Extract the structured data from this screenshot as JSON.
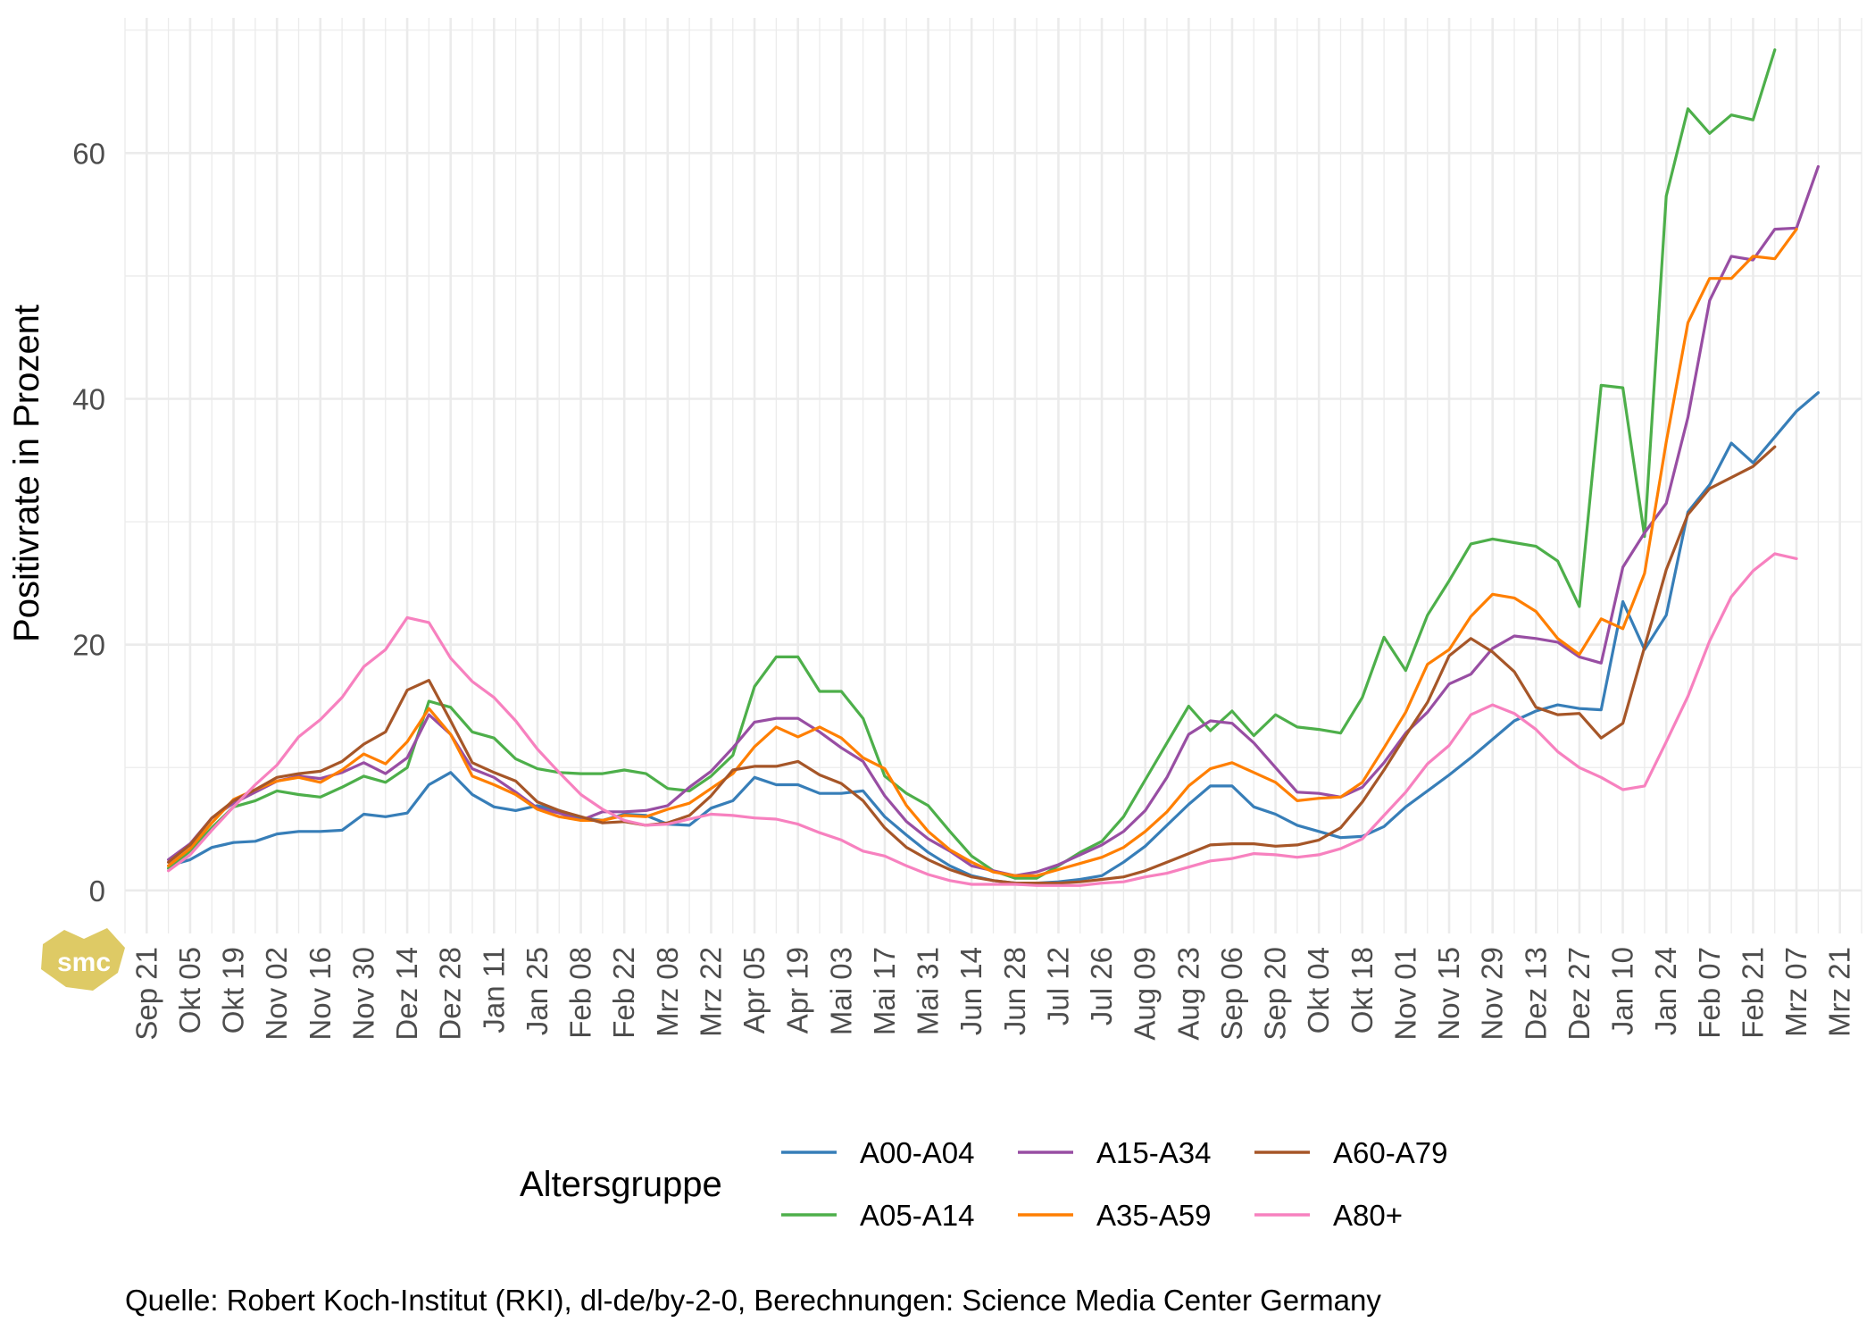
{
  "chart_data": {
    "type": "line",
    "ylabel": "Positivrate in Prozent",
    "xlabel": "",
    "ylim": [
      -3.5,
      71
    ],
    "yticks": [
      0,
      20,
      40,
      60
    ],
    "x_start": "2020-09-14",
    "x_end": "2022-03-28",
    "x_tick_labels": [
      "Sep 21",
      "Okt 05",
      "Okt 19",
      "Nov 02",
      "Nov 16",
      "Nov 30",
      "Dez 14",
      "Dez 28",
      "Jan 11",
      "Jan 25",
      "Feb 08",
      "Feb 22",
      "Mrz 08",
      "Mrz 22",
      "Apr 05",
      "Apr 19",
      "Mai 03",
      "Mai 17",
      "Mai 31",
      "Jun 14",
      "Jun 28",
      "Jul 12",
      "Jul 26",
      "Aug 09",
      "Aug 23",
      "Sep 06",
      "Sep 20",
      "Okt 04",
      "Okt 18",
      "Nov 01",
      "Nov 15",
      "Nov 29",
      "Dez 13",
      "Dez 27",
      "Jan 10",
      "Jan 24",
      "Feb 07",
      "Feb 21",
      "Mrz 07",
      "Mrz 21"
    ],
    "x_ticks": [
      "2020-09-21",
      "2020-10-05",
      "2020-10-19",
      "2020-11-02",
      "2020-11-16",
      "2020-11-30",
      "2020-12-14",
      "2020-12-28",
      "2021-01-11",
      "2021-01-25",
      "2021-02-08",
      "2021-02-22",
      "2021-03-08",
      "2021-03-22",
      "2021-04-05",
      "2021-04-19",
      "2021-05-03",
      "2021-05-17",
      "2021-05-31",
      "2021-06-14",
      "2021-06-28",
      "2021-07-12",
      "2021-07-26",
      "2021-08-09",
      "2021-08-23",
      "2021-09-06",
      "2021-09-20",
      "2021-10-04",
      "2021-10-18",
      "2021-11-01",
      "2021-11-15",
      "2021-11-29",
      "2021-12-13",
      "2021-12-27",
      "2022-01-10",
      "2022-01-24",
      "2022-02-07",
      "2022-02-21",
      "2022-03-07",
      "2022-03-21"
    ],
    "x_first_point": "2020-09-28",
    "x_interval_days": 7,
    "grid": true,
    "legend_title": "Altersgruppe",
    "legend_position": "bottom",
    "caption": "Quelle: Robert Koch-Institut (RKI), dl-de/by-2-0, Berechnungen: Science Media Center Germany",
    "series": [
      {
        "name": "A00-A04",
        "color": "#377eb8",
        "values": [
          2.0,
          2.5,
          3.5,
          3.9,
          4.0,
          4.6,
          4.8,
          4.8,
          4.9,
          6.2,
          6.0,
          6.3,
          8.6,
          9.6,
          7.8,
          6.8,
          6.5,
          6.9,
          6.5,
          5.9,
          5.7,
          6.2,
          6.1,
          5.4,
          5.3,
          6.7,
          7.3,
          9.2,
          8.6,
          8.6,
          7.9,
          7.9,
          8.1,
          6.0,
          4.5,
          3.1,
          2.0,
          1.2,
          0.8,
          0.6,
          0.6,
          0.7,
          0.9,
          1.2,
          2.3,
          3.6,
          5.3,
          7.0,
          8.5,
          8.5,
          6.8,
          6.2,
          5.3,
          4.8,
          4.3,
          4.4,
          5.2,
          6.8,
          8.1,
          9.4,
          10.8,
          12.3,
          13.8,
          14.6,
          15.1,
          14.8,
          14.7,
          23.5,
          19.6,
          22.4,
          30.8,
          33.0,
          36.4,
          34.8,
          36.9,
          39.0,
          40.5
        ]
      },
      {
        "name": "A05-A14",
        "color": "#4daf4a",
        "values": [
          1.8,
          3.2,
          5.1,
          6.8,
          7.3,
          8.1,
          7.8,
          7.6,
          8.4,
          9.3,
          8.8,
          10.0,
          15.4,
          14.9,
          12.9,
          12.4,
          10.7,
          9.9,
          9.6,
          9.5,
          9.5,
          9.8,
          9.5,
          8.3,
          8.1,
          9.3,
          11.0,
          16.6,
          19.0,
          19.0,
          16.2,
          16.2,
          14.0,
          9.3,
          7.9,
          6.9,
          4.8,
          2.8,
          1.6,
          1.0,
          1.0,
          2.0,
          3.1,
          4.0,
          6.0,
          9.0,
          12.0,
          15.0,
          13.0,
          14.6,
          12.6,
          14.3,
          13.3,
          13.1,
          12.8,
          15.7,
          20.6,
          17.9,
          22.4,
          25.2,
          28.2,
          28.6,
          28.3,
          28.0,
          26.8,
          23.1,
          41.1,
          40.9,
          28.8,
          56.5,
          63.6,
          61.6,
          63.1,
          62.7,
          68.4
        ]
      },
      {
        "name": "A15-A34",
        "color": "#984ea3",
        "values": [
          2.5,
          3.8,
          5.9,
          7.1,
          8.0,
          8.9,
          9.3,
          9.1,
          9.6,
          10.4,
          9.5,
          10.8,
          14.3,
          12.7,
          9.9,
          9.2,
          8.0,
          6.7,
          6.3,
          5.7,
          6.4,
          6.4,
          6.5,
          6.9,
          8.4,
          9.7,
          11.6,
          13.7,
          14.0,
          14.0,
          12.9,
          11.6,
          10.5,
          7.7,
          5.6,
          4.2,
          3.2,
          2.0,
          1.6,
          1.2,
          1.5,
          2.1,
          2.9,
          3.7,
          4.8,
          6.5,
          9.2,
          12.7,
          13.8,
          13.6,
          12.0,
          10.0,
          8.0,
          7.9,
          7.6,
          8.4,
          10.4,
          12.8,
          14.5,
          16.8,
          17.6,
          19.7,
          20.7,
          20.5,
          20.2,
          19.0,
          18.5,
          26.3,
          29.1,
          31.5,
          38.5,
          48.0,
          51.6,
          51.3,
          53.8,
          53.9,
          58.9
        ]
      },
      {
        "name": "A35-A59",
        "color": "#ff7f00",
        "values": [
          2.0,
          3.4,
          5.5,
          7.4,
          8.2,
          8.9,
          9.2,
          8.8,
          9.8,
          11.1,
          10.3,
          12.1,
          14.8,
          12.7,
          9.3,
          8.6,
          7.8,
          6.6,
          6.0,
          5.7,
          5.7,
          6.1,
          6.0,
          6.6,
          7.1,
          8.3,
          9.5,
          11.7,
          13.3,
          12.5,
          13.3,
          12.4,
          10.8,
          9.9,
          6.9,
          4.8,
          3.3,
          2.3,
          1.5,
          1.2,
          1.2,
          1.7,
          2.2,
          2.7,
          3.5,
          4.8,
          6.4,
          8.5,
          9.9,
          10.4,
          9.6,
          8.8,
          7.3,
          7.5,
          7.6,
          8.8,
          11.6,
          14.5,
          18.4,
          19.6,
          22.3,
          24.1,
          23.8,
          22.7,
          20.5,
          19.2,
          22.1,
          21.3,
          25.8,
          36.5,
          46.2,
          49.8,
          49.8,
          51.6,
          51.4,
          53.8
        ]
      },
      {
        "name": "A60-A79",
        "color": "#a65628",
        "values": [
          2.3,
          3.7,
          5.9,
          7.3,
          8.2,
          9.2,
          9.5,
          9.7,
          10.5,
          11.9,
          12.9,
          16.3,
          17.1,
          13.8,
          10.4,
          9.6,
          8.9,
          7.2,
          6.5,
          6.0,
          5.5,
          5.6,
          5.3,
          5.5,
          6.1,
          7.7,
          9.8,
          10.1,
          10.1,
          10.5,
          9.4,
          8.7,
          7.3,
          5.1,
          3.5,
          2.5,
          1.7,
          1.1,
          0.8,
          0.6,
          0.6,
          0.6,
          0.7,
          0.9,
          1.1,
          1.6,
          2.3,
          3.0,
          3.7,
          3.8,
          3.8,
          3.6,
          3.7,
          4.1,
          5.1,
          7.2,
          9.8,
          12.6,
          15.3,
          19.1,
          20.5,
          19.4,
          17.8,
          14.9,
          14.3,
          14.4,
          12.4,
          13.6,
          19.8,
          26.1,
          30.6,
          32.7,
          33.6,
          34.5,
          36.1
        ]
      },
      {
        "name": "A80+",
        "color": "#f781bf",
        "values": [
          1.6,
          2.9,
          4.9,
          6.8,
          8.6,
          10.2,
          12.5,
          13.9,
          15.7,
          18.2,
          19.6,
          22.2,
          21.8,
          18.9,
          17.0,
          15.7,
          13.8,
          11.5,
          9.6,
          7.8,
          6.6,
          5.7,
          5.3,
          5.4,
          5.8,
          6.2,
          6.1,
          5.9,
          5.8,
          5.4,
          4.7,
          4.1,
          3.2,
          2.8,
          2.0,
          1.3,
          0.8,
          0.5,
          0.5,
          0.5,
          0.4,
          0.4,
          0.4,
          0.6,
          0.7,
          1.1,
          1.4,
          1.9,
          2.4,
          2.6,
          3.0,
          2.9,
          2.7,
          2.9,
          3.4,
          4.2,
          6.1,
          8.0,
          10.3,
          11.8,
          14.3,
          15.1,
          14.4,
          13.1,
          11.3,
          10.0,
          9.2,
          8.2,
          8.5,
          12.1,
          15.8,
          20.3,
          23.9,
          26.0,
          27.4,
          27.0
        ]
      }
    ]
  },
  "watermark": {
    "text": "smc",
    "color": "#d8c14a"
  }
}
